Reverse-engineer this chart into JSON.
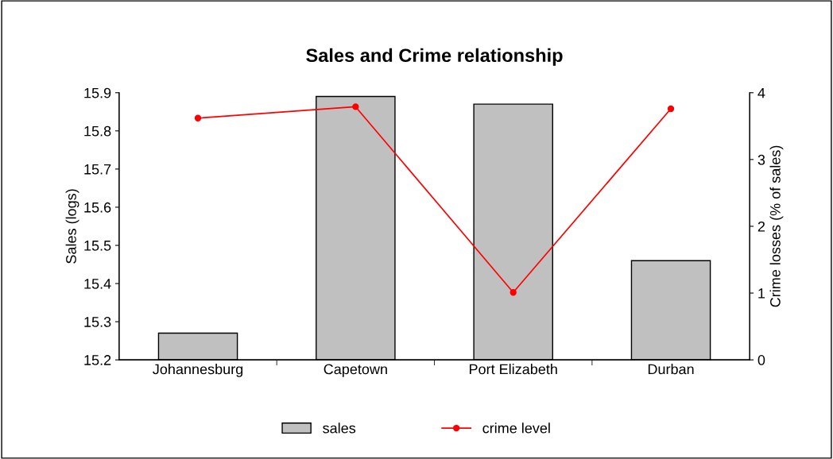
{
  "chart_data": {
    "type": "bar",
    "title": "Sales and Crime relationship",
    "ylabel": "Sales (logs)",
    "y2label": "Crime losses (% of sales)",
    "categories": [
      "Johannesburg",
      "Capetown",
      "Port Elizabeth",
      "Durban"
    ],
    "series": [
      {
        "name": "sales",
        "color": "#c0c0c0",
        "values": [
          15.27,
          15.89,
          15.87,
          15.46
        ]
      },
      {
        "name": "crime level",
        "type": "line",
        "axis": "y2",
        "color": "#ff0000",
        "marker": "circle",
        "values": [
          3.62,
          3.79,
          1.01,
          3.76
        ]
      }
    ],
    "ylim": [
      15.2,
      15.9
    ],
    "yticks": [
      15.2,
      15.3,
      15.4,
      15.5,
      15.6,
      15.7,
      15.8,
      15.9
    ],
    "y2lim": [
      0,
      4
    ],
    "y2ticks": [
      0,
      1,
      2,
      3,
      4
    ],
    "grid": false,
    "legend": "bottom"
  }
}
